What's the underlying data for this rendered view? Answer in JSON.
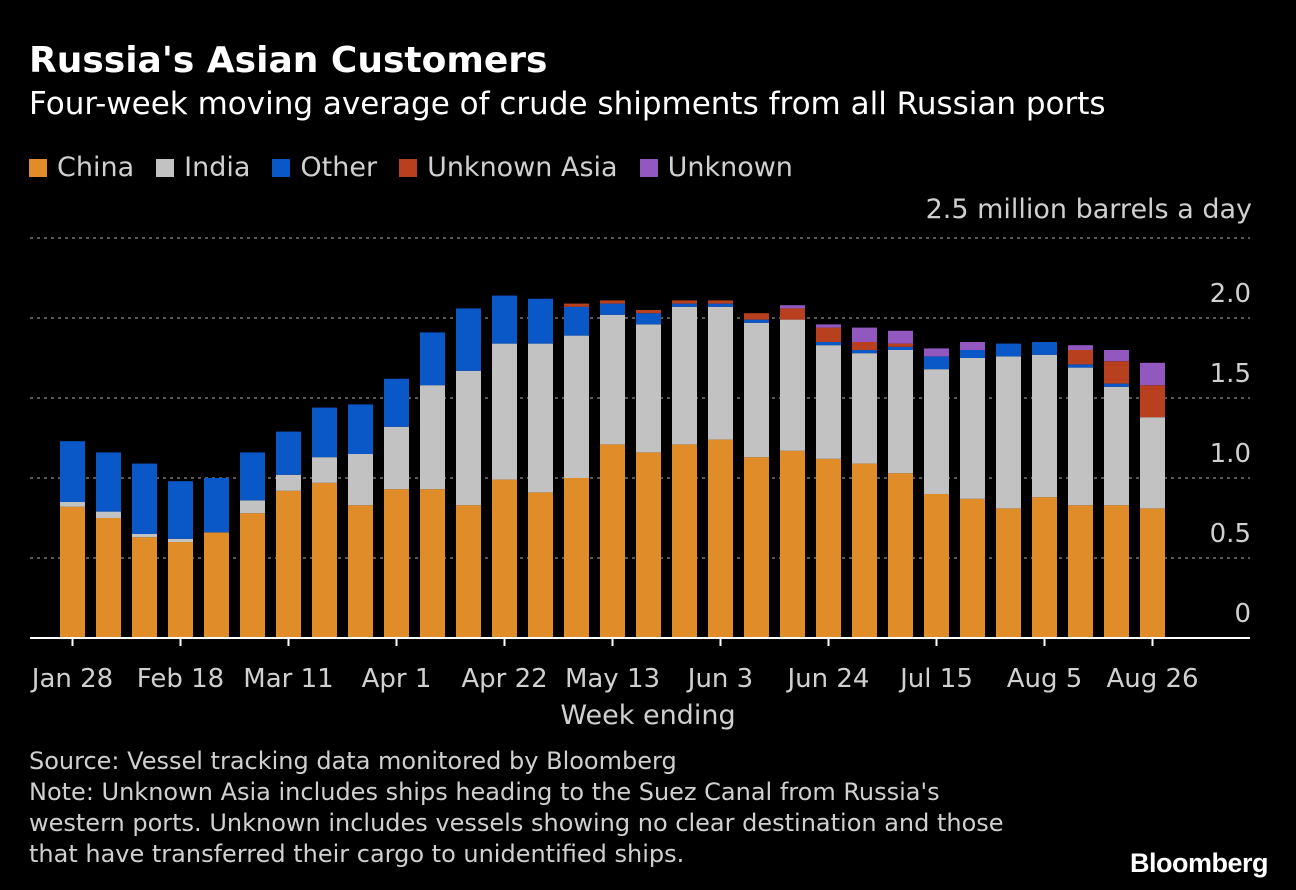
{
  "title": "Russia's Asian Customers",
  "subtitle": "Four-week moving average of crude shipments from all Russian ports",
  "unit_label": "2.5 million barrels a day",
  "x_axis_label": "Week ending",
  "source": "Source: Vessel tracking data monitored by Bloomberg",
  "note_lines": [
    "Note: Unknown Asia includes ships heading to the Suez Canal from Russia's",
    "western ports. Unknown includes vessels showing no clear destination and those",
    "that have transferred their cargo to unidentified ships."
  ],
  "logo": "Bloomberg",
  "legend": [
    {
      "label": "China",
      "color": "#e08c28"
    },
    {
      "label": "India",
      "color": "#c2c2c2"
    },
    {
      "label": "Other",
      "color": "#0a58c8"
    },
    {
      "label": "Unknown Asia",
      "color": "#b8401e"
    },
    {
      "label": "Unknown",
      "color": "#9258c0"
    }
  ],
  "chart_data": {
    "type": "bar",
    "stacked": true,
    "title": "Russia's Asian Customers",
    "subtitle": "Four-week moving average of crude shipments from all Russian ports",
    "xlabel": "Week ending",
    "ylabel": "million barrels a day",
    "ylim": [
      0,
      2.5
    ],
    "y_ticks": [
      0,
      0.5,
      1.0,
      1.5,
      2.0,
      2.5
    ],
    "y_tick_labels": [
      "0",
      "0.5",
      "1.0",
      "1.5",
      "2.0",
      "2.5 million barrels a day"
    ],
    "x_tick_labels": [
      {
        "index": 0,
        "label": "Jan 28"
      },
      {
        "index": 3,
        "label": "Feb 18"
      },
      {
        "index": 6,
        "label": "Mar 11"
      },
      {
        "index": 9,
        "label": "Apr 1"
      },
      {
        "index": 12,
        "label": "Apr 22"
      },
      {
        "index": 15,
        "label": "May 13"
      },
      {
        "index": 18,
        "label": "Jun 3"
      },
      {
        "index": 21,
        "label": "Jun 24"
      },
      {
        "index": 24,
        "label": "Jul 15"
      },
      {
        "index": 27,
        "label": "Aug 5"
      },
      {
        "index": 30,
        "label": "Aug 26"
      }
    ],
    "grid": true,
    "legend_position": "top",
    "series": [
      {
        "name": "China",
        "color": "#e08c28",
        "values": [
          0.82,
          0.75,
          0.63,
          0.6,
          0.66,
          0.78,
          0.92,
          0.97,
          0.83,
          0.93,
          0.93,
          0.83,
          0.99,
          0.91,
          1.0,
          1.21,
          1.16,
          1.21,
          1.24,
          1.13,
          1.17,
          1.12,
          1.09,
          1.03,
          0.9,
          0.87,
          0.81,
          0.88,
          0.83,
          0.83,
          0.81
        ]
      },
      {
        "name": "India",
        "color": "#c2c2c2",
        "values": [
          0.03,
          0.04,
          0.02,
          0.02,
          0.0,
          0.08,
          0.1,
          0.16,
          0.32,
          0.39,
          0.65,
          0.84,
          0.85,
          0.93,
          0.89,
          0.81,
          0.8,
          0.86,
          0.83,
          0.84,
          0.82,
          0.71,
          0.69,
          0.77,
          0.78,
          0.88,
          0.95,
          0.89,
          0.86,
          0.74,
          0.57
        ]
      },
      {
        "name": "Other",
        "color": "#0a58c8",
        "values": [
          0.38,
          0.37,
          0.44,
          0.36,
          0.34,
          0.3,
          0.27,
          0.31,
          0.31,
          0.3,
          0.33,
          0.39,
          0.3,
          0.28,
          0.18,
          0.07,
          0.07,
          0.02,
          0.02,
          0.02,
          0.0,
          0.02,
          0.02,
          0.02,
          0.08,
          0.05,
          0.08,
          0.08,
          0.02,
          0.02,
          0.0
        ]
      },
      {
        "name": "Unknown Asia",
        "color": "#b8401e",
        "values": [
          0,
          0,
          0,
          0,
          0,
          0,
          0,
          0,
          0,
          0,
          0,
          0,
          0,
          0,
          0.02,
          0.02,
          0.02,
          0.02,
          0.02,
          0.04,
          0.07,
          0.09,
          0.05,
          0.02,
          0.0,
          0.0,
          0.0,
          0.0,
          0.09,
          0.14,
          0.2
        ]
      },
      {
        "name": "Unknown",
        "color": "#9258c0",
        "values": [
          0,
          0,
          0,
          0,
          0,
          0,
          0,
          0,
          0,
          0,
          0,
          0,
          0,
          0,
          0,
          0,
          0,
          0,
          0,
          0,
          0.02,
          0.02,
          0.09,
          0.08,
          0.05,
          0.05,
          0.0,
          0.0,
          0.03,
          0.07,
          0.14
        ]
      }
    ]
  }
}
